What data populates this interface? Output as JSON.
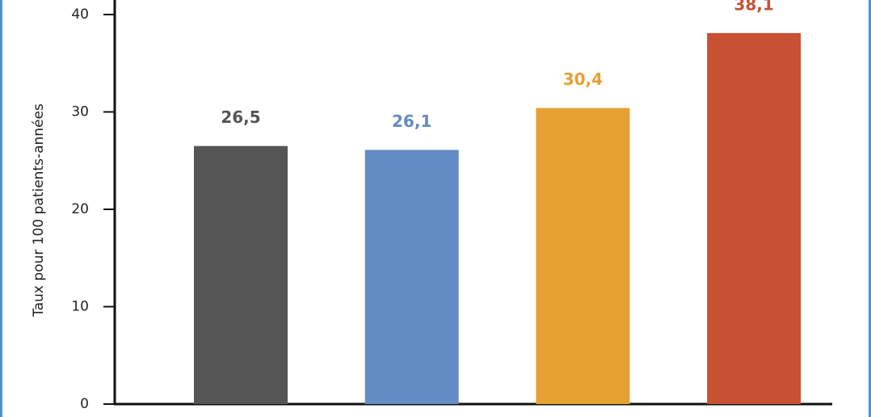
{
  "chart_data": {
    "type": "bar",
    "y_label": "Taux pour 100 patients-années",
    "categories": [
      null,
      null,
      null,
      null
    ],
    "values": [
      26.5,
      26.1,
      30.4,
      38.1
    ],
    "value_labels": [
      "26,5",
      "26,1",
      "30,4",
      "38,1"
    ],
    "colors": [
      "#555555",
      "#638bc4",
      "#e5a132",
      "#c85134"
    ],
    "label_colors": [
      "#555555",
      "#638bc4",
      "#e5a132",
      "#c85134"
    ],
    "ylim": [
      0,
      40
    ],
    "yticks": [
      0,
      10,
      20,
      30,
      40
    ],
    "grid": false
  }
}
